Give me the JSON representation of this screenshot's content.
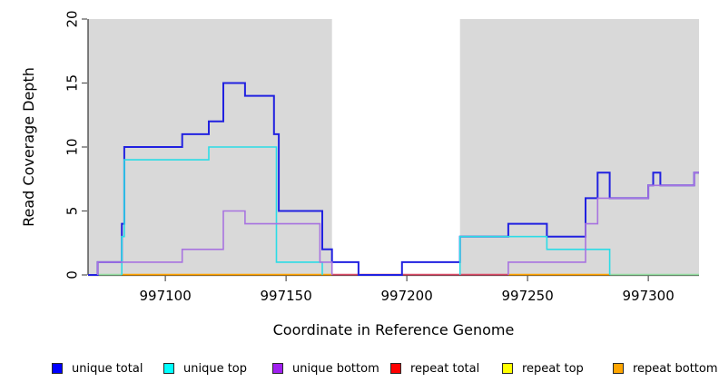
{
  "chart_data": {
    "type": "line",
    "subtype": "step",
    "title": "",
    "xlabel": "Coordinate in Reference Genome",
    "ylabel": "Read Coverage Depth",
    "xlim": [
      997068,
      997321
    ],
    "ylim": [
      0,
      20
    ],
    "xticks": [
      997100,
      997150,
      997200,
      997250,
      997300
    ],
    "yticks": [
      0,
      5,
      10,
      15,
      20
    ],
    "grid": false,
    "legend_position": "bottom",
    "shaded_regions": {
      "color": "#D9D9D9",
      "ranges": [
        [
          997068,
          997169
        ],
        [
          997222,
          997321
        ]
      ]
    },
    "series": [
      {
        "name": "unique total",
        "color": "#2121E0",
        "width": 2,
        "paths": [
          [
            [
              997068,
              0
            ],
            [
              997072,
              1
            ],
            [
              997082,
              4
            ],
            [
              997083,
              10
            ],
            [
              997107,
              11
            ],
            [
              997118,
              12
            ],
            [
              997124,
              15
            ],
            [
              997133,
              14
            ],
            [
              997145,
              11
            ],
            [
              997147,
              5
            ],
            [
              997165,
              2
            ],
            [
              997169,
              1
            ],
            [
              997180,
              0
            ],
            [
              997198,
              1
            ],
            [
              997222,
              3
            ],
            [
              997242,
              4
            ],
            [
              997258,
              3
            ],
            [
              997274,
              6
            ],
            [
              997279,
              8
            ],
            [
              997284,
              6
            ],
            [
              997300,
              7
            ],
            [
              997302,
              8
            ],
            [
              997305,
              7
            ],
            [
              997319,
              8
            ],
            [
              997321,
              8
            ]
          ]
        ]
      },
      {
        "name": "unique top",
        "color": "#2BDCE6",
        "width": 1.6,
        "paths": [
          [
            [
              997082,
              0
            ],
            [
              997082,
              3
            ],
            [
              997083,
              9
            ],
            [
              997118,
              10
            ],
            [
              997146,
              1
            ],
            [
              997165,
              0
            ]
          ],
          [
            [
              997222,
              0
            ],
            [
              997222,
              3
            ],
            [
              997258,
              2
            ],
            [
              997284,
              0
            ]
          ]
        ]
      },
      {
        "name": "unique bottom",
        "color": "#A873E0",
        "width": 1.6,
        "paths": [
          [
            [
              997072,
              0
            ],
            [
              997072,
              1
            ],
            [
              997107,
              2
            ],
            [
              997124,
              5
            ],
            [
              997133,
              4
            ],
            [
              997164,
              1
            ],
            [
              997169,
              0
            ]
          ],
          [
            [
              997242,
              0
            ],
            [
              997242,
              1
            ],
            [
              997274,
              4
            ],
            [
              997279,
              6
            ],
            [
              997300,
              7
            ],
            [
              997319,
              8
            ],
            [
              997321,
              8
            ]
          ]
        ]
      }
    ],
    "baseline_segments": [
      {
        "name": "repeat total at zero",
        "color": "#D94A66",
        "range": [
          997169,
          997242
        ]
      },
      {
        "name": "repeat bottom at zero",
        "color": "#FFA301",
        "range": [
          997082,
          997169
        ]
      },
      {
        "name": "repeat bottom at zero",
        "color": "#FFA301",
        "range": [
          997242,
          997284
        ]
      },
      {
        "name": "repeat top at zero",
        "color": "#96DCA2",
        "range": [
          997072,
          997082
        ]
      },
      {
        "name": "repeat top at zero",
        "color": "#96DCA2",
        "range": [
          997284,
          997321
        ]
      }
    ]
  },
  "legend": {
    "items": [
      {
        "label": "unique total",
        "color": "#0000FF"
      },
      {
        "label": "unique top",
        "color": "#00FFFF"
      },
      {
        "label": "unique bottom",
        "color": "#A020F0"
      },
      {
        "label": "repeat total",
        "color": "#FF0000"
      },
      {
        "label": "repeat top",
        "color": "#FFFF00"
      },
      {
        "label": "repeat bottom",
        "color": "#FFA500"
      }
    ]
  }
}
